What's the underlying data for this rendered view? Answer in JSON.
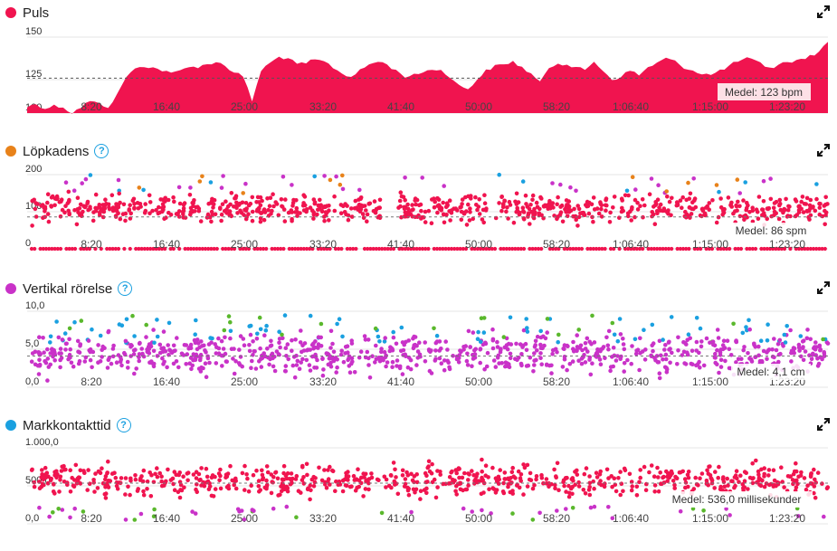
{
  "colors": {
    "puls": "#f0144f",
    "cadence_dot": "#e8821a",
    "vertical": "#c932c8",
    "contact": "#1aa0e0",
    "green": "#5ab82c",
    "grid": "#e6e6e6",
    "avgline": "#777777"
  },
  "x_ticks": [
    "8:20",
    "16:40",
    "25:00",
    "33:20",
    "41:40",
    "50:00",
    "58:20",
    "1:06:40",
    "1:15:00",
    "1:23:20"
  ],
  "panels": [
    {
      "id": "puls",
      "title": "Puls",
      "dot_color": "#f0144f",
      "help": false,
      "yticks": [
        "150",
        "125",
        "100"
      ],
      "avg_label": "Medel: 123 bpm"
    },
    {
      "id": "cadence",
      "title": "Löpkadens",
      "dot_color": "#e8821a",
      "help": true,
      "yticks": [
        "200",
        "100",
        "0"
      ],
      "avg_label": "Medel: 86 spm"
    },
    {
      "id": "vertical",
      "title": "Vertikal rörelse",
      "dot_color": "#c932c8",
      "help": true,
      "yticks": [
        "10,0",
        "5,0",
        "0,0"
      ],
      "avg_label": "Medel: 4,1 cm"
    },
    {
      "id": "contact",
      "title": "Markkontakttid",
      "dot_color": "#1aa0e0",
      "help": true,
      "yticks": [
        "1.000,0",
        "500,0",
        "0,0"
      ],
      "avg_label": "Medel: 536,0 millisekunder"
    }
  ],
  "chart_data": [
    {
      "type": "area",
      "title": "Puls",
      "series": [
        {
          "name": "Puls",
          "unit": "bpm"
        }
      ],
      "ylim": [
        100,
        150
      ],
      "avg": 123,
      "x": [
        0,
        1,
        2,
        3,
        4,
        5,
        6,
        7,
        8,
        9,
        10,
        11,
        12,
        13,
        14,
        15,
        16,
        17,
        18,
        19,
        20,
        21,
        22,
        23,
        24,
        25,
        26,
        27,
        28,
        29,
        30,
        31,
        32,
        33,
        34,
        35,
        36,
        37,
        38,
        39,
        40,
        41,
        42,
        43,
        44,
        45,
        46,
        47,
        48,
        49,
        50,
        51,
        52,
        53,
        54,
        55,
        56,
        57,
        58,
        59,
        60,
        61,
        62,
        63,
        64,
        65,
        66,
        67,
        68,
        69,
        70,
        71,
        72,
        73,
        74,
        75,
        76,
        77,
        78,
        79,
        80,
        81,
        82,
        83,
        84,
        85,
        86,
        87,
        88,
        89
      ],
      "values": [
        104,
        106,
        103,
        105,
        104,
        100,
        104,
        108,
        106,
        104,
        112,
        124,
        129,
        131,
        130,
        128,
        126,
        128,
        131,
        130,
        132,
        134,
        131,
        127,
        124,
        108,
        128,
        133,
        137,
        136,
        132,
        133,
        135,
        134,
        130,
        126,
        124,
        128,
        132,
        134,
        132,
        128,
        124,
        125,
        127,
        129,
        128,
        124,
        118,
        116,
        122,
        128,
        131,
        132,
        134,
        130,
        126,
        120,
        130,
        133,
        132,
        130,
        128,
        134,
        128,
        122,
        124,
        128,
        125,
        130,
        133,
        136,
        134,
        130,
        128,
        126,
        125,
        128,
        131,
        134,
        136,
        134,
        131,
        130,
        133,
        134,
        135,
        138,
        140,
        147
      ]
    },
    {
      "type": "scatter",
      "title": "Löpkadens",
      "series": [
        {
          "name": "Löpkadens",
          "unit": "spm"
        }
      ],
      "ylim": [
        0,
        200
      ],
      "avg": 86
    },
    {
      "type": "scatter",
      "title": "Vertikal rörelse",
      "series": [
        {
          "name": "Vertikal rörelse",
          "unit": "cm"
        }
      ],
      "ylim": [
        0,
        10
      ],
      "avg": 4.1
    },
    {
      "type": "scatter",
      "title": "Markkontakttid",
      "series": [
        {
          "name": "Markkontakttid",
          "unit": "millisekunder"
        }
      ],
      "ylim": [
        0,
        1000
      ],
      "avg": 536.0
    }
  ]
}
